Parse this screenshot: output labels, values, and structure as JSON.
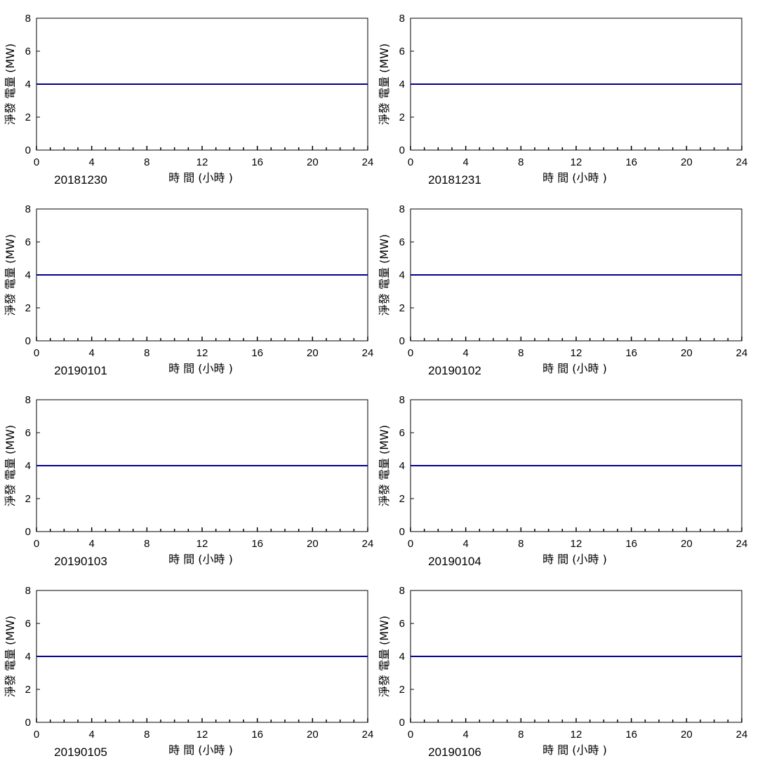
{
  "chart_data": [
    {
      "type": "line",
      "title": "20181230",
      "xlabel": "時 間 (小時 )",
      "ylabel": "淨發 電量 (MW)",
      "xlim": [
        0,
        24
      ],
      "ylim": [
        0,
        8
      ],
      "xticks": [
        "0",
        "4",
        "8",
        "12",
        "16",
        "20",
        "24"
      ],
      "yticks": [
        "0",
        "2",
        "4",
        "6",
        "8"
      ],
      "series": [
        {
          "x": [
            0,
            24
          ],
          "y": [
            4,
            4
          ]
        }
      ]
    },
    {
      "type": "line",
      "title": "20181231",
      "xlabel": "時 間 (小時 )",
      "ylabel": "淨發 電量 (MW)",
      "xlim": [
        0,
        24
      ],
      "ylim": [
        0,
        8
      ],
      "xticks": [
        "0",
        "4",
        "8",
        "12",
        "16",
        "20",
        "24"
      ],
      "yticks": [
        "0",
        "2",
        "4",
        "6",
        "8"
      ],
      "series": [
        {
          "x": [
            0,
            24
          ],
          "y": [
            4,
            4
          ]
        }
      ]
    },
    {
      "type": "line",
      "title": "20190101",
      "xlabel": "時 間 (小時 )",
      "ylabel": "淨發 電量 (MW)",
      "xlim": [
        0,
        24
      ],
      "ylim": [
        0,
        8
      ],
      "xticks": [
        "0",
        "4",
        "8",
        "12",
        "16",
        "20",
        "24"
      ],
      "yticks": [
        "0",
        "2",
        "4",
        "6",
        "8"
      ],
      "series": [
        {
          "x": [
            0,
            24
          ],
          "y": [
            4,
            4
          ]
        }
      ]
    },
    {
      "type": "line",
      "title": "20190102",
      "xlabel": "時 間 (小時 )",
      "ylabel": "淨發 電量 (MW)",
      "xlim": [
        0,
        24
      ],
      "ylim": [
        0,
        8
      ],
      "xticks": [
        "0",
        "4",
        "8",
        "12",
        "16",
        "20",
        "24"
      ],
      "yticks": [
        "0",
        "2",
        "4",
        "6",
        "8"
      ],
      "series": [
        {
          "x": [
            0,
            24
          ],
          "y": [
            4,
            4
          ]
        }
      ]
    },
    {
      "type": "line",
      "title": "20190103",
      "xlabel": "時 間 (小時 )",
      "ylabel": "淨發 電量 (MW)",
      "xlim": [
        0,
        24
      ],
      "ylim": [
        0,
        8
      ],
      "xticks": [
        "0",
        "4",
        "8",
        "12",
        "16",
        "20",
        "24"
      ],
      "yticks": [
        "0",
        "2",
        "4",
        "6",
        "8"
      ],
      "series": [
        {
          "x": [
            0,
            24
          ],
          "y": [
            4,
            4
          ]
        }
      ]
    },
    {
      "type": "line",
      "title": "20190104",
      "xlabel": "時 間 (小時 )",
      "ylabel": "淨發 電量 (MW)",
      "xlim": [
        0,
        24
      ],
      "ylim": [
        0,
        8
      ],
      "xticks": [
        "0",
        "4",
        "8",
        "12",
        "16",
        "20",
        "24"
      ],
      "yticks": [
        "0",
        "2",
        "4",
        "6",
        "8"
      ],
      "series": [
        {
          "x": [
            0,
            24
          ],
          "y": [
            4,
            4
          ]
        }
      ]
    },
    {
      "type": "line",
      "title": "20190105",
      "xlabel": "時 間 (小時 )",
      "ylabel": "淨發 電量 (MW)",
      "xlim": [
        0,
        24
      ],
      "ylim": [
        0,
        8
      ],
      "xticks": [
        "0",
        "4",
        "8",
        "12",
        "16",
        "20",
        "24"
      ],
      "yticks": [
        "0",
        "2",
        "4",
        "6",
        "8"
      ],
      "series": [
        {
          "x": [
            0,
            24
          ],
          "y": [
            4,
            4
          ]
        }
      ]
    },
    {
      "type": "line",
      "title": "20190106",
      "xlabel": "時 間 (小時 )",
      "ylabel": "淨發 電量 (MW)",
      "xlim": [
        0,
        24
      ],
      "ylim": [
        0,
        8
      ],
      "xticks": [
        "0",
        "4",
        "8",
        "12",
        "16",
        "20",
        "24"
      ],
      "yticks": [
        "0",
        "2",
        "4",
        "6",
        "8"
      ],
      "series": [
        {
          "x": [
            0,
            24
          ],
          "y": [
            4,
            4
          ]
        }
      ]
    }
  ],
  "colors": {
    "line": "#00008b",
    "axis": "#000000"
  }
}
